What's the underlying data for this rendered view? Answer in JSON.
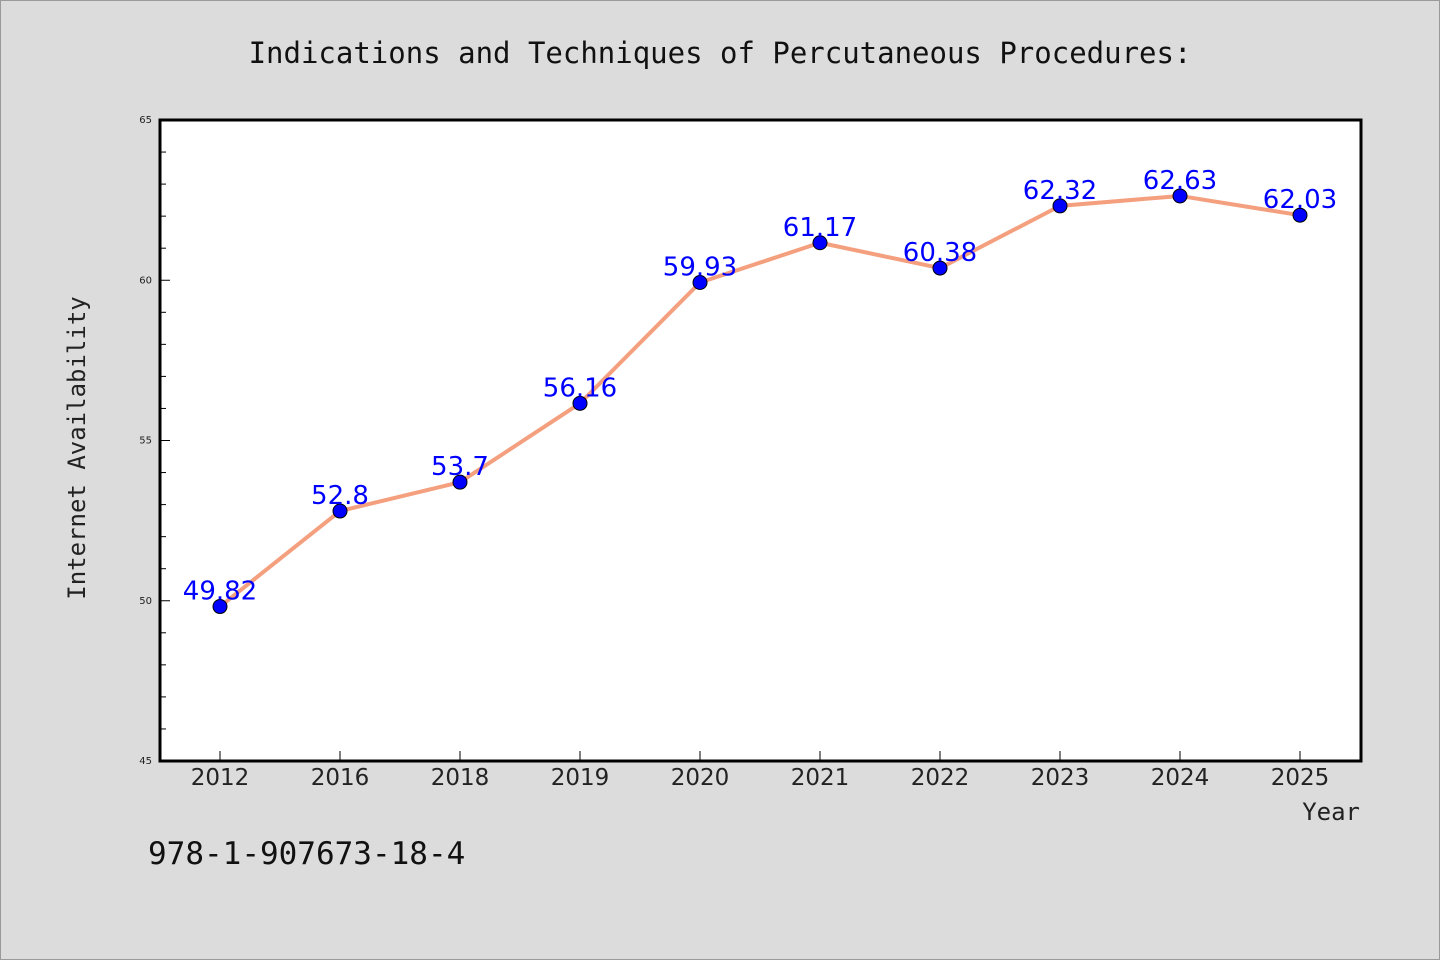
{
  "chart_data": {
    "type": "line",
    "title": "Indications and Techniques of Percutaneous Procedures:",
    "xlabel": "Year",
    "ylabel": "Internet Availability",
    "categories": [
      "2012",
      "2016",
      "2018",
      "2019",
      "2020",
      "2021",
      "2022",
      "2023",
      "2024",
      "2025"
    ],
    "series": [
      {
        "values": [
          49.82,
          52.8,
          53.7,
          56.16,
          59.93,
          61.17,
          60.38,
          62.32,
          62.63,
          62.03
        ],
        "labels": [
          "49.82",
          "52.8",
          "53.7",
          "56.16",
          "59.93",
          "61.17",
          "60.38",
          "62.32",
          "62.63",
          "62.03"
        ],
        "line_color": "#f4a07f",
        "marker_color": "#0000ff"
      }
    ],
    "ylim": [
      45,
      65
    ],
    "yticks": [
      "45",
      "50",
      "55",
      "60",
      "65"
    ],
    "grid": false,
    "legend": "none"
  },
  "footer": {
    "isbn": "978-1-907673-18-4"
  },
  "colors": {
    "background": "#dcdcdc",
    "plot_background": "#ffffff",
    "label_color": "#0000ff"
  }
}
